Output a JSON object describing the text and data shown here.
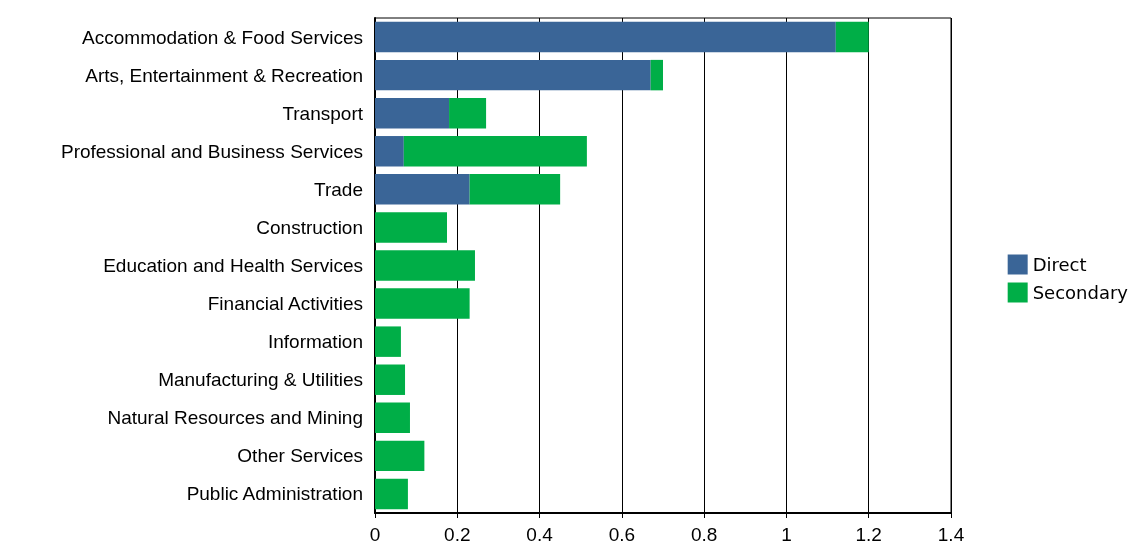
{
  "chart_data": {
    "type": "bar",
    "orientation": "horizontal",
    "stacked": true,
    "categories": [
      "Accommodation & Food Services",
      "Arts, Entertainment & Recreation",
      "Transport",
      "Professional and Business Services",
      "Trade",
      "Construction",
      "Education and Health Services",
      "Financial Activities",
      "Information",
      "Manufacturing & Utilities",
      "Natural Resources and Mining",
      "Other Services",
      "Public Administration"
    ],
    "series": [
      {
        "name": "Direct",
        "color": "#3a6597",
        "values": [
          1.12,
          0.67,
          0.18,
          0.07,
          0.23,
          0,
          0,
          0,
          0,
          0,
          0,
          0,
          0
        ]
      },
      {
        "name": "Secondary",
        "color": "#00ae47",
        "values": [
          0.08,
          0.03,
          0.09,
          0.445,
          0.22,
          0.175,
          0.243,
          0.23,
          0.063,
          0.073,
          0.085,
          0.12,
          0.08
        ]
      }
    ],
    "xlim": [
      0,
      1.4
    ],
    "xticks": [
      0,
      0.2,
      0.4,
      0.6,
      0.8,
      1,
      1.2,
      1.4
    ],
    "grid": "x",
    "legend": "right"
  }
}
